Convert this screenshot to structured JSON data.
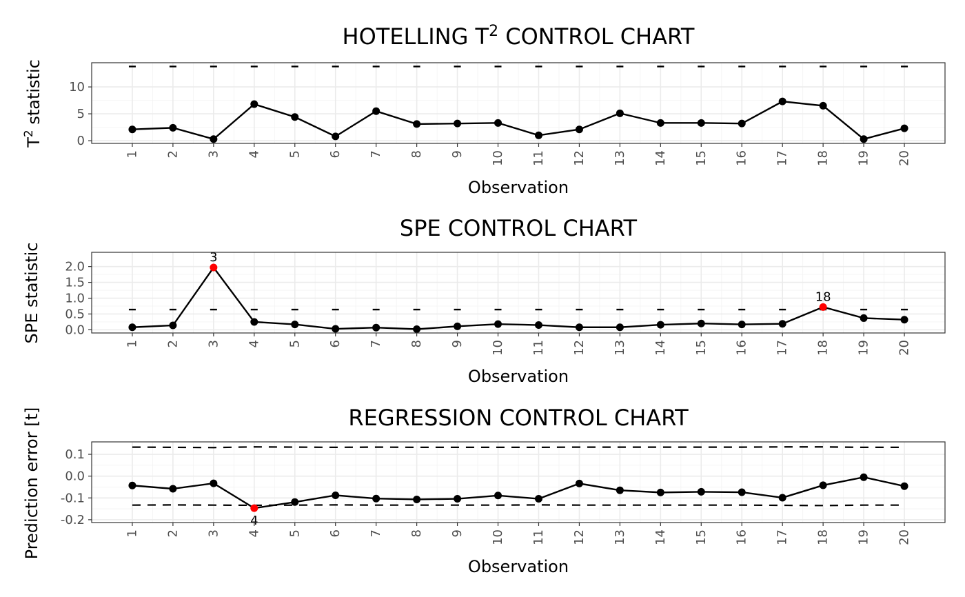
{
  "chart_data": [
    {
      "type": "line",
      "title": "HOTELLING T",
      "title_sup": "2",
      "title_rest": " CONTROL CHART",
      "ylabel": "T",
      "ylabel_sup": "2",
      "ylabel_rest": " statistic",
      "xlabel": "Observation",
      "x": [
        1,
        2,
        3,
        4,
        5,
        6,
        7,
        8,
        9,
        10,
        11,
        12,
        13,
        14,
        15,
        16,
        17,
        18,
        19,
        20
      ],
      "ylim": [
        -0.5,
        14.5
      ],
      "yticks": [
        0,
        5,
        10
      ],
      "series": [
        {
          "values": [
            2.1,
            2.4,
            0.3,
            6.8,
            4.4,
            0.8,
            5.5,
            3.1,
            3.2,
            3.3,
            1.0,
            2.1,
            5.1,
            3.3,
            3.3,
            3.2,
            7.3,
            6.5,
            0.3,
            2.3
          ]
        }
      ],
      "upper_limit": [
        13.8,
        13.8,
        13.8,
        13.8,
        13.8,
        13.8,
        13.8,
        13.8,
        13.8,
        13.8,
        13.8,
        13.8,
        13.8,
        13.8,
        13.8,
        13.8,
        13.8,
        13.8,
        13.8,
        13.8
      ],
      "limit_style": "segments",
      "flagged": [],
      "color_normal": "#000000",
      "color_flag": "#ff0000"
    },
    {
      "type": "line",
      "title": "SPE CONTROL CHART",
      "title_sup": "",
      "title_rest": "",
      "ylabel": "SPE statistic",
      "ylabel_sup": "",
      "ylabel_rest": "",
      "xlabel": "Observation",
      "x": [
        1,
        2,
        3,
        4,
        5,
        6,
        7,
        8,
        9,
        10,
        11,
        12,
        13,
        14,
        15,
        16,
        17,
        18,
        19,
        20
      ],
      "ylim": [
        -0.1,
        2.45
      ],
      "yticks": [
        0.0,
        0.5,
        1.0,
        1.5,
        2.0
      ],
      "ytick_labels": [
        "0.0",
        "0.5",
        "1.0",
        "1.5",
        "2.0"
      ],
      "series": [
        {
          "values": [
            0.08,
            0.14,
            1.97,
            0.25,
            0.17,
            0.03,
            0.07,
            0.02,
            0.11,
            0.18,
            0.15,
            0.08,
            0.08,
            0.16,
            0.2,
            0.17,
            0.19,
            0.72,
            0.37,
            0.32
          ]
        }
      ],
      "upper_limit": [
        0.64,
        0.64,
        0.64,
        0.64,
        0.64,
        0.64,
        0.64,
        0.64,
        0.64,
        0.64,
        0.64,
        0.64,
        0.64,
        0.64,
        0.64,
        0.64,
        0.64,
        0.64,
        0.64,
        0.64
      ],
      "limit_style": "segments",
      "flagged": [
        {
          "x": 3,
          "label": "3",
          "position": "above"
        },
        {
          "x": 18,
          "label": "18",
          "position": "above"
        }
      ],
      "color_normal": "#000000",
      "color_flag": "#ff0000"
    },
    {
      "type": "line",
      "title": "REGRESSION CONTROL CHART",
      "title_sup": "",
      "title_rest": "",
      "ylabel": "Prediction error [t]",
      "ylabel_sup": "",
      "ylabel_rest": "",
      "xlabel": "Observation",
      "x": [
        1,
        2,
        3,
        4,
        5,
        6,
        7,
        8,
        9,
        10,
        11,
        12,
        13,
        14,
        15,
        16,
        17,
        18,
        19,
        20
      ],
      "ylim": [
        -0.213,
        0.157
      ],
      "yticks": [
        -0.2,
        -0.1,
        0.0,
        0.1
      ],
      "ytick_labels": [
        "-0.2",
        "-0.1",
        "0.0",
        "0.1"
      ],
      "series": [
        {
          "values": [
            -0.043,
            -0.058,
            -0.033,
            -0.147,
            -0.119,
            -0.088,
            -0.103,
            -0.107,
            -0.104,
            -0.089,
            -0.104,
            -0.034,
            -0.065,
            -0.075,
            -0.072,
            -0.074,
            -0.099,
            -0.042,
            -0.005,
            -0.046
          ]
        }
      ],
      "upper_limit": [
        0.133,
        0.132,
        0.131,
        0.134,
        0.133,
        0.132,
        0.133,
        0.132,
        0.132,
        0.132,
        0.132,
        0.133,
        0.133,
        0.133,
        0.133,
        0.133,
        0.134,
        0.134,
        0.132,
        0.132
      ],
      "lower_limit": [
        -0.133,
        -0.132,
        -0.133,
        -0.134,
        -0.133,
        -0.132,
        -0.133,
        -0.133,
        -0.133,
        -0.133,
        -0.132,
        -0.133,
        -0.133,
        -0.133,
        -0.133,
        -0.133,
        -0.134,
        -0.135,
        -0.133,
        -0.133
      ],
      "limit_style": "dashed",
      "flagged": [
        {
          "x": 4,
          "label": "4",
          "position": "below"
        }
      ],
      "color_normal": "#000000",
      "color_flag": "#ff0000"
    }
  ]
}
